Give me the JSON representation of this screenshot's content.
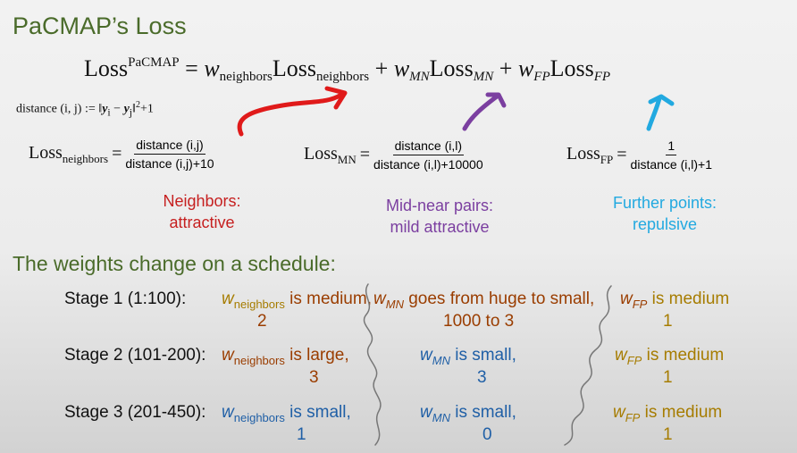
{
  "title": "PaCMAP’s Loss",
  "main_equation": {
    "loss_word": "Loss",
    "loss_sup": "PaCMAP",
    "equals": "=",
    "w": "w",
    "neighbors_sub": "neighbors",
    "mn_sub": "MN",
    "fp_sub": "FP",
    "plus": "+"
  },
  "distance_definition": {
    "prefix": "distance (i, j) := ‖",
    "yi": "y",
    "i_sub": "i",
    "minus": " − ",
    "yj": "y",
    "j_sub": "j",
    "suffix": "‖",
    "sup": "2",
    "tail": "+1"
  },
  "losses": {
    "neighbors": {
      "name": "Loss",
      "sub": "neighbors",
      "numerator": "distance (i,j)",
      "denominator": "distance (i,j)+10"
    },
    "mn": {
      "name": "Loss",
      "sub": "MN",
      "numerator": "distance (i,l)",
      "denominator": "distance (i,l)+10000"
    },
    "fp": {
      "name": "Loss",
      "sub": "FP",
      "numerator": "1",
      "denominator": "distance (i,l)+1"
    }
  },
  "captions": {
    "neighbors": {
      "line1": "Neighbors:",
      "line2": "attractive"
    },
    "mn": {
      "line1": "Mid-near pairs:",
      "line2": "mild attractive"
    },
    "fp": {
      "line1": "Further points:",
      "line2": "repulsive"
    }
  },
  "schedule_title": "The weights change on a schedule:",
  "stages": [
    {
      "label": "Stage 1 (1:100):",
      "neighbors": {
        "w": "w",
        "sub": "neighbors",
        "desc": " is medium,",
        "value": "2"
      },
      "mn": {
        "w": "w",
        "sub": "MN",
        "desc": " goes from huge to small,",
        "value": "1000 to 3"
      },
      "fp": {
        "w": "w",
        "sub": "FP",
        "desc": " is medium",
        "value": "1"
      }
    },
    {
      "label": "Stage 2 (101-200):",
      "neighbors": {
        "w": "w",
        "sub": "neighbors",
        "desc": " is large,",
        "value": "3"
      },
      "mn": {
        "w": "w",
        "sub": "MN",
        "desc": " is small,",
        "value": "3"
      },
      "fp": {
        "w": "w",
        "sub": "FP",
        "desc": " is medium",
        "value": "1"
      }
    },
    {
      "label": "Stage 3 (201-450):",
      "neighbors": {
        "w": "w",
        "sub": "neighbors",
        "desc": " is small,",
        "value": "1"
      },
      "mn": {
        "w": "w",
        "sub": "MN",
        "desc": " is small,",
        "value": "0"
      },
      "fp": {
        "w": "w",
        "sub": "FP",
        "desc": " is medium",
        "value": "1"
      }
    }
  ],
  "colors": {
    "title": "#4a6b2a",
    "neighbors_arrow": "#e01a1a",
    "mn_arrow": "#7b3fa0",
    "fp_arrow": "#22a9e0",
    "medium": "#a67c00",
    "large": "#9a3d00",
    "small": "#1f5fa6"
  }
}
